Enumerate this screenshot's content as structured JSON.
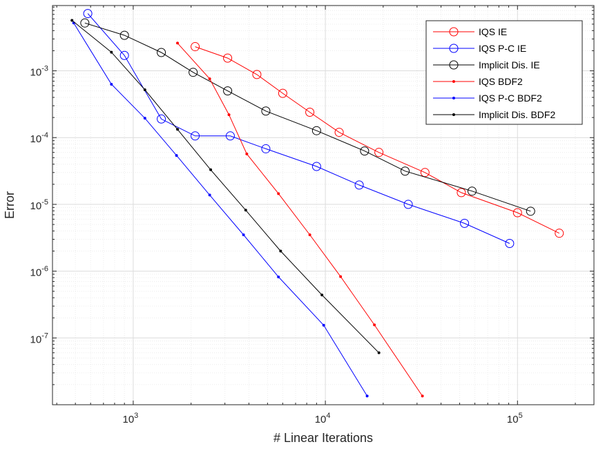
{
  "chart_data": {
    "type": "line",
    "xscale": "log",
    "yscale": "log",
    "xlabel": "# Linear Iterations",
    "ylabel": "Error",
    "xlim": [
      380,
      250000
    ],
    "ylim": [
      1e-08,
      0.0095
    ],
    "grid": true,
    "minor_grid": true,
    "legend_position": "top-right",
    "x_tick_labels": [
      {
        "x": 1000,
        "base": "10",
        "exp": "3"
      },
      {
        "x": 10000,
        "base": "10",
        "exp": "4"
      },
      {
        "x": 100000,
        "base": "10",
        "exp": "5"
      }
    ],
    "y_tick_labels": [
      {
        "y": 0.001,
        "base": "10",
        "exp": "-3"
      },
      {
        "y": 0.0001,
        "base": "10",
        "exp": "-4"
      },
      {
        "y": 1e-05,
        "base": "10",
        "exp": "-5"
      },
      {
        "y": 1e-06,
        "base": "10",
        "exp": "-6"
      },
      {
        "y": 1e-07,
        "base": "10",
        "exp": "-7"
      }
    ],
    "series": [
      {
        "name": "IQS IE",
        "color": "#ff0000",
        "marker": "circle",
        "x": [
          2100,
          3100,
          4400,
          6000,
          8300,
          11800,
          19000,
          33000,
          51000,
          100000,
          165000
        ],
        "y": [
          0.0023,
          0.00155,
          0.00088,
          0.00046,
          0.00024,
          0.00012,
          6e-05,
          3e-05,
          1.5e-05,
          7.5e-06,
          3.7e-06
        ]
      },
      {
        "name": "IQS P-C IE",
        "color": "#0000ff",
        "marker": "circle",
        "x": [
          580,
          900,
          1400,
          2100,
          3200,
          4900,
          9000,
          15000,
          27000,
          53000,
          91000
        ],
        "y": [
          0.0072,
          0.0017,
          0.00019,
          0.000106,
          0.000106,
          6.8e-05,
          3.7e-05,
          1.95e-05,
          1e-05,
          5.2e-06,
          2.6e-06
        ]
      },
      {
        "name": "Implicit Dis. IE",
        "color": "#000000",
        "marker": "circle",
        "x": [
          560,
          900,
          1400,
          2050,
          3100,
          4900,
          9000,
          16000,
          26000,
          58000,
          117000
        ],
        "y": [
          0.0052,
          0.0034,
          0.00188,
          0.00095,
          0.0005,
          0.00025,
          0.000127,
          6.3e-05,
          3.15e-05,
          1.58e-05,
          7.9e-06
        ]
      },
      {
        "name": "IQS BDF2",
        "color": "#ff0000",
        "marker": "dot",
        "x": [
          1700,
          2500,
          3150,
          3900,
          5700,
          8300,
          12000,
          18000,
          32000
        ],
        "y": [
          0.0026,
          0.00076,
          0.00022,
          5.7e-05,
          1.45e-05,
          3.5e-06,
          8.3e-07,
          1.57e-07,
          1.35e-08
        ]
      },
      {
        "name": "IQS P-C BDF2",
        "color": "#0000ff",
        "marker": "dot",
        "x": [
          490,
          770,
          1150,
          1680,
          2500,
          3750,
          5700,
          9800,
          16500
        ],
        "y": [
          0.0052,
          0.00063,
          0.000195,
          5.4e-05,
          1.38e-05,
          3.5e-06,
          8.2e-07,
          1.55e-07,
          1.35e-08
        ]
      },
      {
        "name": "Implicit Dis. BDF2",
        "color": "#000000",
        "marker": "dot",
        "x": [
          480,
          770,
          1150,
          1700,
          2530,
          3850,
          5850,
          9600,
          19000
        ],
        "y": [
          0.0057,
          0.0019,
          0.00052,
          0.000133,
          3.3e-05,
          8.2e-06,
          2e-06,
          4.4e-07,
          6e-08
        ]
      }
    ]
  }
}
